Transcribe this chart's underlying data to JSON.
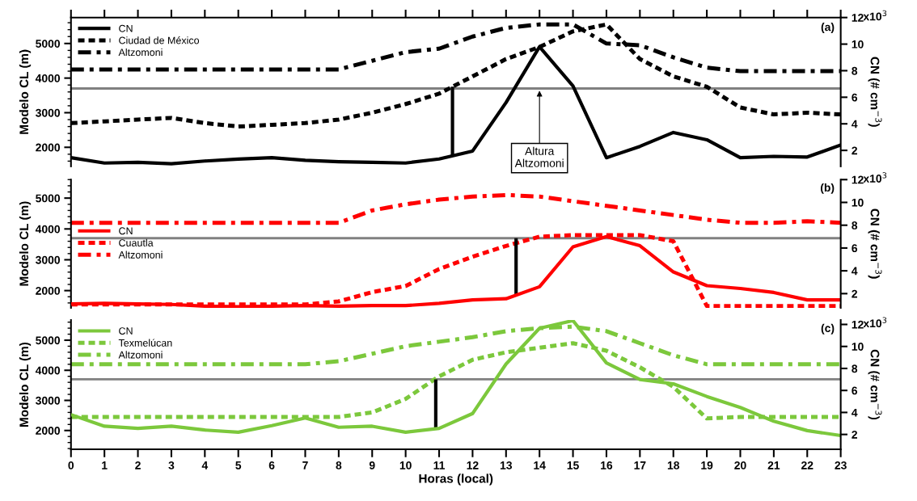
{
  "chart_data": [
    {
      "type": "line",
      "ylabel": "Modelo CL (m)",
      "y2label": "CN (# cm$^{−3}$)",
      "x": [
        0,
        1,
        2,
        3,
        4,
        5,
        6,
        7,
        8,
        9,
        10,
        11,
        12,
        13,
        14,
        15,
        16,
        17,
        18,
        19,
        20,
        21,
        22,
        23
      ],
      "xlim": [
        0,
        23
      ],
      "xticks": [
        0,
        1,
        2,
        3,
        4,
        5,
        6,
        7,
        8,
        9,
        10,
        11,
        12,
        13,
        14,
        15,
        16,
        17,
        18,
        19,
        20,
        21,
        22,
        23
      ],
      "ylim": [
        1450,
        5750
      ],
      "yticks": [
        2000,
        3000,
        4000,
        5000
      ],
      "y2lim": [
        0.8,
        12
      ],
      "y2ticks": [
        2,
        4,
        6,
        8,
        10,
        12
      ],
      "tick_labels": "y",
      "grid": false,
      "legend": "top left",
      "series": [
        {
          "name": "CN",
          "color": "#000000",
          "axis": "y2",
          "line_style": "solid",
          "values": [
            1.45,
            1.05,
            1.1,
            1.0,
            1.2,
            1.35,
            1.45,
            1.25,
            1.15,
            1.1,
            1.05,
            1.35,
            1.95,
            5.6,
            9.8,
            6.85,
            1.45,
            2.3,
            3.35,
            2.8,
            1.45,
            1.55,
            1.5,
            2.4
          ]
        },
        {
          "name": "Ciudad de México",
          "color": "#000000",
          "line_style": "dashed",
          "values": [
            2700,
            2750,
            2800,
            2850,
            2700,
            2600,
            2650,
            2700,
            2800,
            3000,
            3250,
            3550,
            4050,
            4550,
            4900,
            5350,
            5550,
            4550,
            4050,
            3750,
            3150,
            2950,
            3000,
            2950
          ]
        },
        {
          "name": "Altzomoni",
          "color": "#000000",
          "line_style": "dashdot",
          "values": [
            4250,
            4250,
            4250,
            4250,
            4250,
            4250,
            4250,
            4250,
            4250,
            4500,
            4750,
            4850,
            5200,
            5450,
            5550,
            5550,
            5000,
            4950,
            4600,
            4300,
            4200,
            4200,
            4200,
            4200
          ]
        },
        {
          "color": "#000000",
          "line_style": "solid",
          "x": [
            11.4,
            11.4
          ],
          "values": [
            1750,
            3750
          ]
        }
      ],
      "ref_lines": [
        {
          "axis": "y",
          "value": 3700,
          "color": "#808080"
        }
      ],
      "annotations": [
        "(a)",
        "x10$^{3}$",
        {
          "text": "Altura\nAltzomoni",
          "x": 14,
          "y": 3700
        }
      ]
    },
    {
      "type": "line",
      "ylabel": "Modelo CL (m)",
      "y2label": "CN (# cm$^{−3}$)",
      "x": [
        0,
        1,
        2,
        3,
        4,
        5,
        6,
        7,
        8,
        9,
        10,
        11,
        12,
        13,
        14,
        15,
        16,
        17,
        18,
        19,
        20,
        21,
        22,
        23
      ],
      "xlim": [
        0,
        23
      ],
      "ylim": [
        1440,
        5600
      ],
      "yticks": [
        2000,
        3000,
        4000,
        5000
      ],
      "y2lim": [
        0.75,
        12
      ],
      "y2ticks": [
        2,
        4,
        6,
        8,
        10,
        12
      ],
      "tick_labels": "y",
      "grid": false,
      "legend": "center left",
      "series": [
        {
          "name": "CN",
          "color": "#ff0000",
          "axis": "y2",
          "line_style": "solid",
          "values": [
            1.1,
            1.15,
            1.1,
            1.05,
            0.9,
            0.85,
            0.9,
            0.95,
            0.9,
            0.95,
            0.95,
            1.15,
            1.45,
            1.55,
            2.6,
            6.1,
            7.0,
            6.2,
            3.9,
            2.7,
            2.45,
            2.1,
            1.45,
            1.45
          ]
        },
        {
          "name": "Cuautla",
          "color": "#ff0000",
          "line_style": "dashed",
          "values": [
            1550,
            1550,
            1550,
            1550,
            1550,
            1550,
            1550,
            1550,
            1650,
            1950,
            2150,
            2700,
            3100,
            3450,
            3750,
            3800,
            3800,
            3800,
            3600,
            1500,
            1500,
            1500,
            1500,
            1500
          ]
        },
        {
          "name": "Altzomoni",
          "color": "#ff0000",
          "line_style": "dashdot",
          "values": [
            4200,
            4200,
            4200,
            4200,
            4200,
            4200,
            4200,
            4200,
            4200,
            4600,
            4800,
            4950,
            5050,
            5100,
            5050,
            4900,
            4750,
            4600,
            4450,
            4300,
            4200,
            4200,
            4250,
            4200
          ]
        },
        {
          "color": "#000000",
          "line_style": "solid",
          "x": [
            13.3,
            13.3
          ],
          "values": [
            1850,
            3700
          ]
        }
      ],
      "ref_lines": [
        {
          "axis": "y",
          "value": 3700,
          "color": "#808080"
        }
      ],
      "annotations": [
        "(b)",
        "x10$^{3}$"
      ]
    },
    {
      "type": "line",
      "ylabel": "Modelo CL (m)",
      "y2label": "CN (# cm$^{−3}$)",
      "xlabel": "Horas (local)",
      "x": [
        0,
        1,
        2,
        3,
        4,
        5,
        6,
        7,
        8,
        9,
        10,
        11,
        12,
        13,
        14,
        15,
        16,
        17,
        18,
        19,
        20,
        21,
        22,
        23
      ],
      "xlim": [
        0,
        23
      ],
      "xticks": [
        0,
        1,
        2,
        3,
        4,
        5,
        6,
        7,
        8,
        9,
        10,
        11,
        12,
        13,
        14,
        15,
        16,
        17,
        18,
        19,
        20,
        21,
        22,
        23
      ],
      "ylim": [
        1375,
        5670
      ],
      "yticks": [
        2000,
        3000,
        4000,
        5000
      ],
      "y2lim": [
        0.65,
        12.4
      ],
      "y2ticks": [
        2,
        4,
        6,
        8,
        10,
        12
      ],
      "grid": false,
      "legend": "top left",
      "series": [
        {
          "name": "CN",
          "color": "#7cc83c",
          "axis": "y2",
          "line_style": "solid",
          "values": [
            3.8,
            2.75,
            2.55,
            2.75,
            2.4,
            2.2,
            2.8,
            3.5,
            2.65,
            2.75,
            2.2,
            2.55,
            3.9,
            8.4,
            11.65,
            12.35,
            8.5,
            7.0,
            6.6,
            5.45,
            4.45,
            3.2,
            2.35,
            1.9
          ]
        },
        {
          "name": "Texmelúcan",
          "color": "#7cc83c",
          "line_style": "dashed",
          "values": [
            2450,
            2450,
            2450,
            2450,
            2450,
            2450,
            2450,
            2450,
            2450,
            2600,
            3050,
            3800,
            4350,
            4600,
            4750,
            4900,
            4650,
            4100,
            3450,
            2400,
            2450,
            2450,
            2450,
            2450
          ]
        },
        {
          "name": "Altzomoni",
          "color": "#7cc83c",
          "line_style": "dashdot",
          "values": [
            4200,
            4200,
            4200,
            4200,
            4200,
            4200,
            4200,
            4200,
            4300,
            4550,
            4800,
            4950,
            5100,
            5300,
            5400,
            5450,
            5300,
            4900,
            4500,
            4200,
            4200,
            4200,
            4200,
            4200
          ]
        },
        {
          "color": "#000000",
          "line_style": "solid",
          "x": [
            10.9,
            10.9
          ],
          "values": [
            2100,
            3700
          ]
        }
      ],
      "ref_lines": [
        {
          "axis": "y",
          "value": 3700,
          "color": "#808080"
        }
      ],
      "annotations": [
        "(c)",
        "x10$^{3}$"
      ]
    }
  ]
}
